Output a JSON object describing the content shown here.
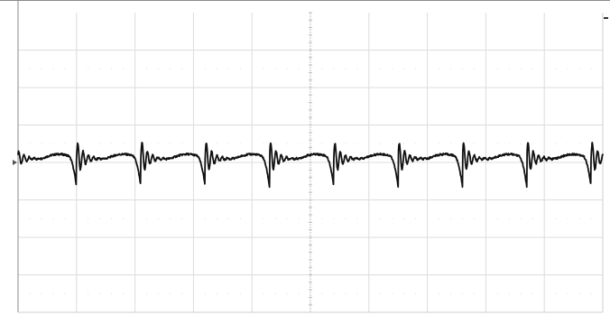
{
  "chart_data": {
    "type": "line",
    "title": "",
    "xlabel": "",
    "ylabel": "",
    "grid": true,
    "grid_divisions": {
      "x": 10,
      "y": 8
    },
    "xlim": [
      0,
      10
    ],
    "ylim": [
      -4,
      4
    ],
    "ground_level": 0,
    "trace_color": "#111111",
    "grid_color": "#dcdcdc",
    "center_axis_color": "#bfbfbf",
    "frame_color": "#8a8a8a",
    "series": [
      {
        "values_description_free": true,
        "period": 1.1,
        "first_event": 1.0,
        "baseline": 0.1,
        "hump_amplitude": 0.1,
        "dip_min": -0.65,
        "ringing_peak": 0.5,
        "ringing_trough": -0.5,
        "ringing_decay": 0.12
      }
    ]
  }
}
